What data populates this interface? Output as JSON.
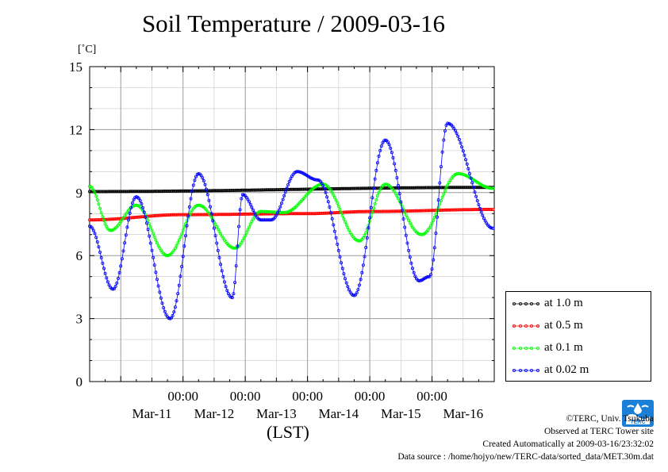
{
  "chart_data": {
    "type": "line",
    "title": "Soil Temperature / 2009-03-16",
    "unit_label": "[˚C]",
    "xlabel": "(LST)",
    "ylabel": "",
    "ylim": [
      0,
      15
    ],
    "yticks": [
      0,
      3,
      6,
      9,
      12,
      15
    ],
    "xlim": [
      "2009-03-10T12:00",
      "2009-03-17T00:00"
    ],
    "time_labels": [
      "00:00",
      "00:00",
      "00:00",
      "00:00",
      "00:00"
    ],
    "time_label_positions": [
      "2009-03-12T00:00",
      "2009-03-13T00:00",
      "2009-03-14T00:00",
      "2009-03-15T00:00",
      "2009-03-16T00:00"
    ],
    "date_labels": [
      "Mar-11",
      "Mar-12",
      "Mar-13",
      "Mar-14",
      "Mar-15",
      "Mar-16"
    ],
    "date_label_positions": [
      "2009-03-11T12:00",
      "2009-03-12T12:00",
      "2009-03-13T12:00",
      "2009-03-14T12:00",
      "2009-03-15T12:00",
      "2009-03-16T12:00"
    ],
    "grid": true,
    "legend_position": "bottom-right, outside plot",
    "series": [
      {
        "name": "at 1.0 m",
        "color": "#000000",
        "points": [
          [
            "2009-03-10T12:00",
            9.05
          ],
          [
            "2009-03-16T23:30",
            9.25
          ]
        ]
      },
      {
        "name": "at 0.5 m",
        "color": "#ff0000",
        "points": [
          [
            "2009-03-10T12:00",
            7.7
          ],
          [
            "2009-03-12T00:00",
            7.95
          ],
          [
            "2009-03-14T00:00",
            8.0
          ],
          [
            "2009-03-15T00:00",
            8.1
          ],
          [
            "2009-03-16T23:30",
            8.2
          ]
        ]
      },
      {
        "name": "at 0.1 m",
        "color": "#00ff00",
        "points": [
          [
            "2009-03-10T12:00",
            9.3
          ],
          [
            "2009-03-10T20:00",
            7.2
          ],
          [
            "2009-03-11T06:00",
            8.4
          ],
          [
            "2009-03-11T18:00",
            6.0
          ],
          [
            "2009-03-12T06:00",
            8.4
          ],
          [
            "2009-03-12T20:00",
            6.35
          ],
          [
            "2009-03-13T06:00",
            8.1
          ],
          [
            "2009-03-13T15:00",
            8.05
          ],
          [
            "2009-03-14T06:00",
            9.4
          ],
          [
            "2009-03-14T20:00",
            6.7
          ],
          [
            "2009-03-15T06:00",
            9.4
          ],
          [
            "2009-03-15T20:00",
            7.0
          ],
          [
            "2009-03-16T10:00",
            9.9
          ],
          [
            "2009-03-16T23:30",
            9.2
          ]
        ]
      },
      {
        "name": "at 0.02 m",
        "color": "#0000ff",
        "points": [
          [
            "2009-03-10T12:00",
            7.4
          ],
          [
            "2009-03-10T21:00",
            4.4
          ],
          [
            "2009-03-11T06:00",
            8.8
          ],
          [
            "2009-03-11T19:00",
            3.0
          ],
          [
            "2009-03-12T06:00",
            9.9
          ],
          [
            "2009-03-12T19:00",
            4.0
          ],
          [
            "2009-03-12T23:00",
            8.9
          ],
          [
            "2009-03-13T06:00",
            7.7
          ],
          [
            "2009-03-13T10:00",
            7.7
          ],
          [
            "2009-03-13T20:00",
            10.0
          ],
          [
            "2009-03-14T04:00",
            9.6
          ],
          [
            "2009-03-14T18:00",
            4.1
          ],
          [
            "2009-03-15T06:00",
            11.5
          ],
          [
            "2009-03-15T19:00",
            4.8
          ],
          [
            "2009-03-15T23:00",
            5.0
          ],
          [
            "2009-03-16T06:00",
            12.3
          ],
          [
            "2009-03-16T23:30",
            7.3
          ]
        ]
      }
    ]
  },
  "credits": {
    "line1": "©TERC, Univ. Tsukuba",
    "line2": "Observed at TERC Tower site",
    "line3": "Created Automatically at 2009-03-16/23:32:02",
    "line4": "Data source : /home/hojyo/new/TERC-data/sorted_data/MET.30m.dat"
  },
  "logo": {
    "text": "TERC",
    "color": "#1a7fd6"
  }
}
